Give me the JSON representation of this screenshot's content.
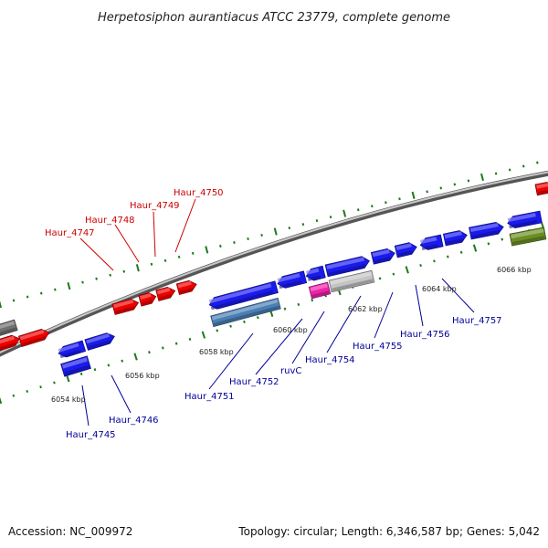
{
  "title": "Herpetosiphon aurantiacus ATCC 23779, complete genome",
  "footer": {
    "accession": "Accession: NC_009972",
    "summary": "Topology: circular; Length: 6,346,587 bp; Genes: 5,042"
  },
  "colors": {
    "forward_gene": "#ee0000",
    "reverse_gene": "#1a1aee",
    "backbone": "#8a8a8a",
    "tick": "#1a7a1a",
    "gene_steelblue": "#4a7fb5",
    "gene_magenta": "#ee22aa",
    "gene_silver": "#c4c4c4",
    "gene_olive": "#6b8e23",
    "gene_gray": "#707070",
    "label_forward": "#cc0000",
    "label_reverse": "#000099"
  },
  "scale_labels": [
    "6054 kbp",
    "6056 kbp",
    "6058 kbp",
    "6060 kbp",
    "6062 kbp",
    "6064 kbp",
    "6066 kbp"
  ],
  "forward_labels": [
    "Haur_4747",
    "Haur_4748",
    "Haur_4749",
    "Haur_4750"
  ],
  "reverse_labels": [
    "Haur_4745",
    "Haur_4746",
    "Haur_4751",
    "Haur_4752",
    "ruvC",
    "Haur_4754",
    "Haur_4755",
    "Haur_4756",
    "Haur_4757"
  ]
}
